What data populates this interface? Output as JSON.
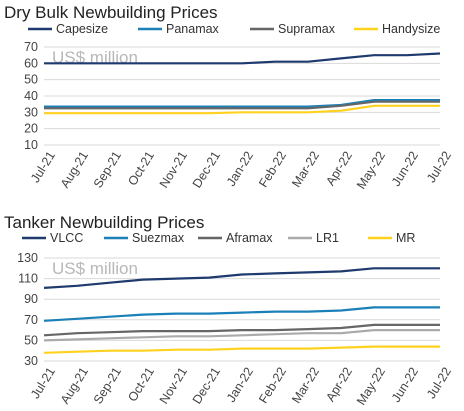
{
  "chart_data": [
    {
      "type": "line",
      "title": "Dry Bulk Newbuilding Prices",
      "annotation": "US$ million",
      "xlabel": "",
      "ylabel": "",
      "ylim": [
        10,
        70
      ],
      "yticks": [
        10,
        20,
        30,
        40,
        50,
        60,
        70
      ],
      "grid": true,
      "legend": "top",
      "x": [
        "Jul-21",
        "Aug-21",
        "Sep-21",
        "Oct-21",
        "Nov-21",
        "Dec-21",
        "Jan-22",
        "Feb-22",
        "Mar-22",
        "Apr-22",
        "May-22",
        "Jun-22",
        "Jul-22"
      ],
      "series": [
        {
          "name": "Capesize",
          "color": "#1f3a6e",
          "values": [
            60,
            60,
            60,
            60,
            60,
            60,
            60,
            61,
            61,
            63,
            65,
            65,
            66
          ]
        },
        {
          "name": "Panamax",
          "color": "#1b80b8",
          "values": [
            33.5,
            33.5,
            33.5,
            33.5,
            33.5,
            33.5,
            33.5,
            33.5,
            33.5,
            34.5,
            37.5,
            37.5,
            37.5
          ]
        },
        {
          "name": "Supramax",
          "color": "#666666",
          "values": [
            32.5,
            32.5,
            32.5,
            32.5,
            32.5,
            32.5,
            32.5,
            32.5,
            32.5,
            34,
            36.5,
            36.5,
            36.5
          ]
        },
        {
          "name": "Handysize",
          "color": "#ffd21f",
          "values": [
            29.5,
            29.5,
            29.5,
            29.5,
            29.5,
            29.5,
            30,
            30,
            30,
            31,
            34,
            34,
            34
          ]
        }
      ]
    },
    {
      "type": "line",
      "title": "Tanker Newbuilding Prices",
      "annotation": "US$ million",
      "xlabel": "",
      "ylabel": "",
      "ylim": [
        30,
        130
      ],
      "yticks": [
        30,
        50,
        70,
        90,
        110,
        130
      ],
      "grid": true,
      "legend": "top",
      "x": [
        "Jul-21",
        "Aug-21",
        "Sep-21",
        "Oct-21",
        "Nov-21",
        "Dec-21",
        "Jan-22",
        "Feb-22",
        "Mar-22",
        "Apr-22",
        "May-22",
        "Jun-22",
        "Jul-22"
      ],
      "series": [
        {
          "name": "VLCC",
          "color": "#1f3a6e",
          "values": [
            101,
            103,
            106,
            109,
            110,
            111,
            114,
            115,
            116,
            117,
            120,
            120,
            120
          ]
        },
        {
          "name": "Suezmax",
          "color": "#1b80b8",
          "values": [
            69,
            71,
            73,
            75,
            76,
            76,
            77,
            78,
            78,
            79,
            82,
            82,
            82
          ]
        },
        {
          "name": "Aframax",
          "color": "#666666",
          "values": [
            55,
            57,
            58,
            59,
            59,
            59,
            60,
            60,
            61,
            62,
            65,
            65,
            65
          ]
        },
        {
          "name": "LR1",
          "color": "#aaaaaa",
          "values": [
            50,
            51,
            52,
            53,
            54,
            54,
            55,
            56,
            57,
            57,
            60,
            60,
            60
          ]
        },
        {
          "name": "MR",
          "color": "#ffd21f",
          "values": [
            38,
            39,
            40,
            40,
            41,
            41,
            42,
            42,
            42,
            43,
            44,
            44,
            44
          ]
        }
      ]
    }
  ]
}
